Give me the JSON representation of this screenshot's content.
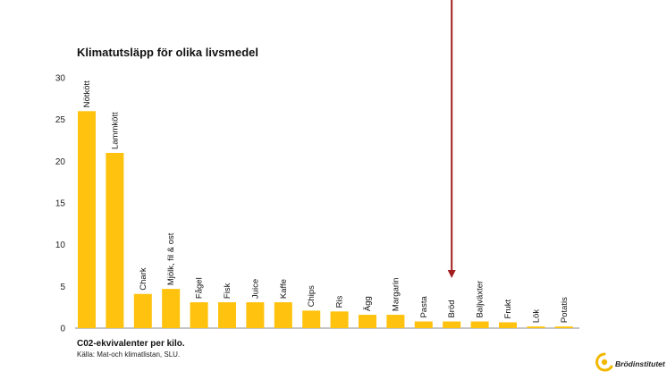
{
  "chart_data": {
    "type": "bar",
    "title": "Klimatutsläpp för olika livsmedel",
    "xlabel": "",
    "ylabel": "",
    "ylim": [
      0,
      30
    ],
    "yticks": [
      0,
      5,
      10,
      15,
      20,
      25,
      30
    ],
    "grid": false,
    "categories": [
      "Nötkött",
      "Lammkött",
      "Chark",
      "Mjölk, fil & ost",
      "Fågel",
      "Fisk",
      "Juice",
      "Kaffe",
      "Chips",
      "Ris",
      "Ägg",
      "Margarin",
      "Pasta",
      "Bröd",
      "Baljväxter",
      "Frukt",
      "Lök",
      "Potatis"
    ],
    "values": [
      26,
      21,
      4.1,
      4.7,
      3.1,
      3.1,
      3.1,
      3.1,
      2.1,
      2.0,
      1.6,
      1.6,
      0.8,
      0.8,
      0.8,
      0.7,
      0.2,
      0.2
    ],
    "bar_color": "#FFC20E",
    "highlight": {
      "category": "Bröd",
      "marker": "red-arrow",
      "color": "#A31E1E"
    }
  },
  "footer": {
    "note": "C02-ekvivalenter per kilo.",
    "source": "Källa: Mat-och klimatlistan, SLU."
  },
  "logo": {
    "text": "Brödinstitutet",
    "icon": "brodinstitutet-logo-icon",
    "color": "#F2B800"
  }
}
